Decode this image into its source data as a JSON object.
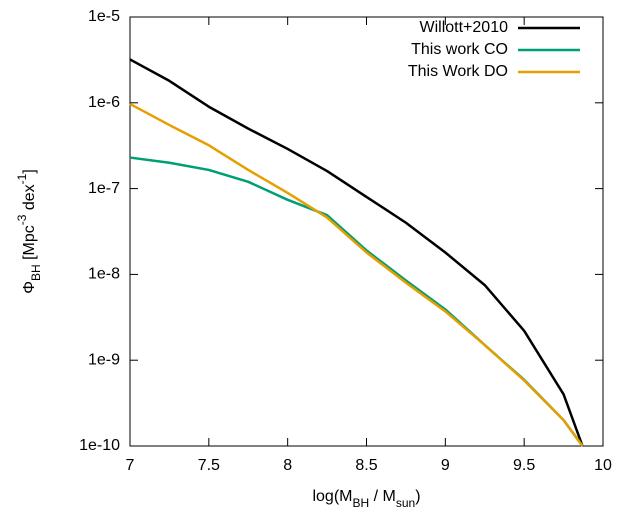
{
  "chart_data": {
    "type": "line",
    "x": [
      7,
      7.25,
      7.5,
      7.75,
      8,
      8.25,
      8.5,
      8.75,
      9,
      9.25,
      9.5,
      9.75,
      9.87
    ],
    "series": [
      {
        "name": "Willott+2010",
        "color": "#000000",
        "values": [
          3.2e-06,
          1.8e-06,
          9e-07,
          5e-07,
          2.9e-07,
          1.6e-07,
          8e-08,
          4e-08,
          1.8e-08,
          7.5e-09,
          2.2e-09,
          4e-10,
          1e-10
        ]
      },
      {
        "name": "This work CO",
        "color": "#009e73",
        "values": [
          2.3e-07,
          2e-07,
          1.65e-07,
          1.2e-07,
          7.4e-08,
          4.9e-08,
          1.9e-08,
          8.5e-09,
          3.9e-09,
          1.5e-09,
          5.9e-10,
          2e-10,
          1e-10
        ]
      },
      {
        "name": "This Work DO",
        "color": "#e69f00",
        "values": [
          9.7e-07,
          5.5e-07,
          3.2e-07,
          1.65e-07,
          8.9e-08,
          4.6e-08,
          1.8e-08,
          8e-09,
          3.7e-09,
          1.5e-09,
          5.8e-10,
          2e-10,
          1e-10
        ]
      }
    ],
    "xlim": [
      7,
      10
    ],
    "xticks": [
      7,
      7.5,
      8,
      8.5,
      9,
      9.5,
      10
    ],
    "ylim": [
      1e-10,
      1e-05
    ],
    "log_y": true,
    "yticks": [
      {
        "value": 1e-10,
        "label": "1e-10"
      },
      {
        "value": 1e-09,
        "label": "1e-9"
      },
      {
        "value": 1e-08,
        "label": "1e-8"
      },
      {
        "value": 1e-07,
        "label": "1e-7"
      },
      {
        "value": 1e-06,
        "label": "1e-6"
      },
      {
        "value": 1e-05,
        "label": "1e-5"
      }
    ],
    "x_label": [
      {
        "text": "log(M"
      },
      {
        "text": "BH",
        "shift": "sub"
      },
      {
        "text": " / M"
      },
      {
        "text": "sun",
        "shift": "sub"
      },
      {
        "text": ")"
      }
    ],
    "y_label": [
      {
        "text": "Φ"
      },
      {
        "text": "BH",
        "shift": "sub"
      },
      {
        "text": " [Mpc"
      },
      {
        "text": "-3",
        "shift": "super"
      },
      {
        "text": " dex"
      },
      {
        "text": "-1",
        "shift": "super"
      },
      {
        "text": "]"
      }
    ],
    "legend": "upper right"
  }
}
